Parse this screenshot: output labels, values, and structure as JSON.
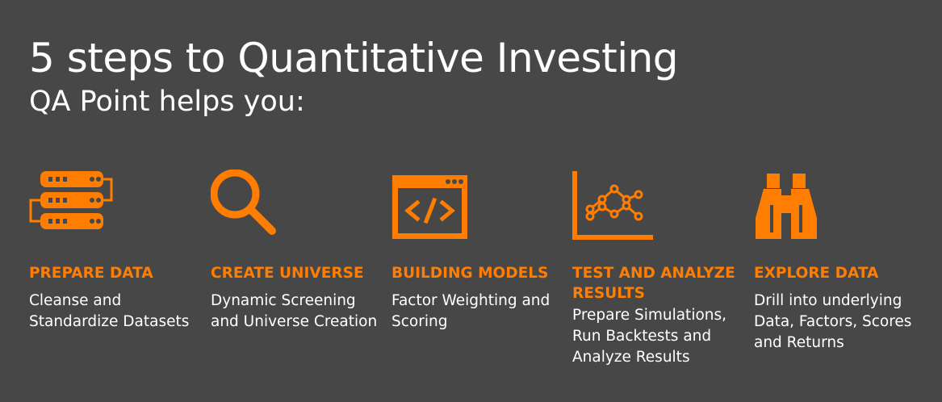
{
  "title": "5 steps to Quantitative Investing",
  "subtitle": "QA Point helps you:",
  "accent_color": "#ff7d00",
  "background_color": "#474747",
  "steps": [
    {
      "icon": "server-stack-icon",
      "heading": "PREPARE DATA",
      "description": "Cleanse and Standardize Datasets"
    },
    {
      "icon": "magnifier-icon",
      "heading": "CREATE UNIVERSE",
      "description": "Dynamic Screening and Universe Creation"
    },
    {
      "icon": "code-window-icon",
      "heading": "BUILDING MODELS",
      "description": "Factor Weighting and Scoring"
    },
    {
      "icon": "line-chart-icon",
      "heading": "TEST AND ANALYZE RESULTS",
      "description": "Prepare Simulations, Run Backtests and Analyze Results"
    },
    {
      "icon": "binoculars-icon",
      "heading": "EXPLORE DATA",
      "description": "Drill into underlying Data, Factors, Scores and Returns"
    }
  ]
}
